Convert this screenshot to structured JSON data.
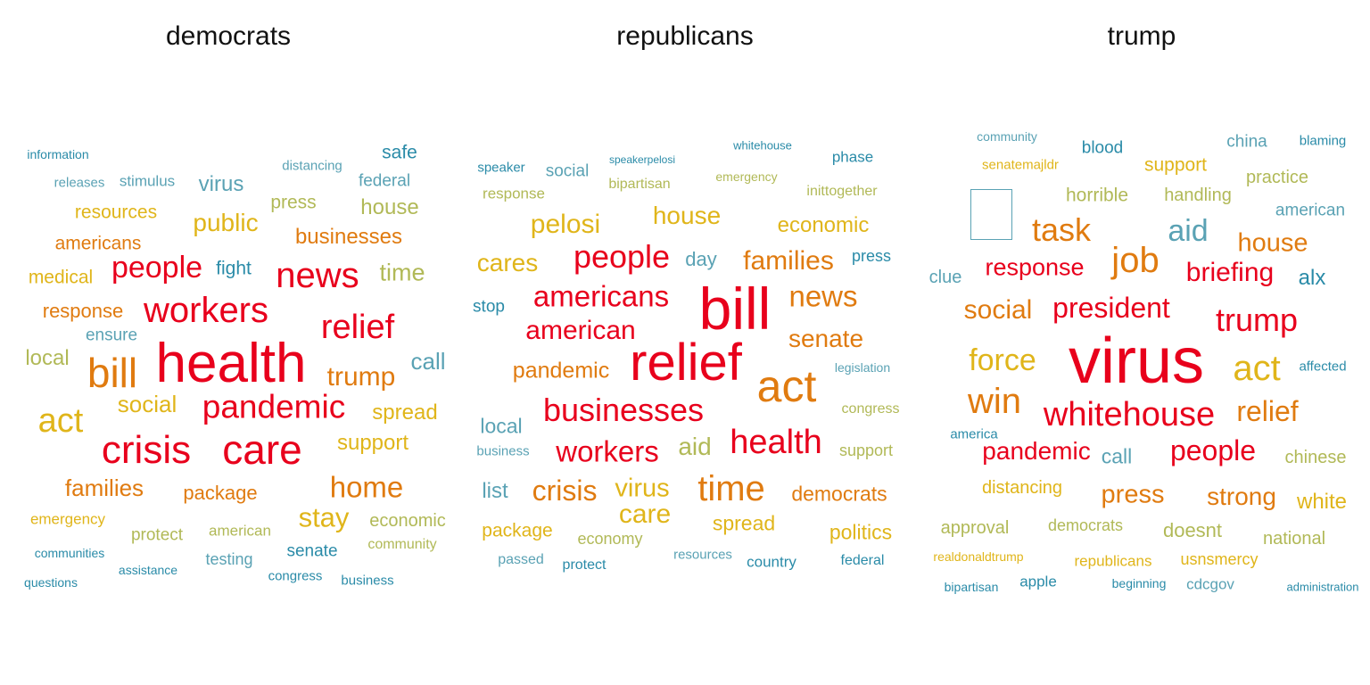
{
  "chart_data": [
    {
      "type": "wordcloud",
      "title": "democrats",
      "words": [
        {
          "text": "health",
          "size": 62,
          "color": "#e8001c"
        },
        {
          "text": "care",
          "size": 46,
          "color": "#e8001c"
        },
        {
          "text": "crisis",
          "size": 44,
          "color": "#e8001c"
        },
        {
          "text": "bill",
          "size": 46,
          "color": "#e07b10"
        },
        {
          "text": "news",
          "size": 40,
          "color": "#e8001c"
        },
        {
          "text": "workers",
          "size": 40,
          "color": "#e8001c"
        },
        {
          "text": "pandemic",
          "size": 37,
          "color": "#e8001c"
        },
        {
          "text": "relief",
          "size": 38,
          "color": "#e8001c"
        },
        {
          "text": "act",
          "size": 38,
          "color": "#e0b51a"
        },
        {
          "text": "people",
          "size": 34,
          "color": "#e8001c"
        },
        {
          "text": "home",
          "size": 33,
          "color": "#e07b10"
        },
        {
          "text": "stay",
          "size": 31,
          "color": "#e0b51a"
        },
        {
          "text": "trump",
          "size": 30,
          "color": "#e07b10"
        },
        {
          "text": "public",
          "size": 28,
          "color": "#e0b51a"
        },
        {
          "text": "families",
          "size": 26,
          "color": "#e07b10"
        },
        {
          "text": "time",
          "size": 27,
          "color": "#b1b957"
        },
        {
          "text": "social",
          "size": 26,
          "color": "#e0b51a"
        },
        {
          "text": "call",
          "size": 26,
          "color": "#5aa2b4"
        },
        {
          "text": "businesses",
          "size": 24,
          "color": "#e07b10"
        },
        {
          "text": "support",
          "size": 24,
          "color": "#e0b51a"
        },
        {
          "text": "spread",
          "size": 24,
          "color": "#e0b51a"
        },
        {
          "text": "virus",
          "size": 24,
          "color": "#5aa2b4"
        },
        {
          "text": "house",
          "size": 24,
          "color": "#b1b957"
        },
        {
          "text": "package",
          "size": 22,
          "color": "#e07b10"
        },
        {
          "text": "local",
          "size": 24,
          "color": "#b1b957"
        },
        {
          "text": "response",
          "size": 22,
          "color": "#e07b10"
        },
        {
          "text": "resources",
          "size": 21,
          "color": "#e0b51a"
        },
        {
          "text": "americans",
          "size": 21,
          "color": "#e07b10"
        },
        {
          "text": "medical",
          "size": 21,
          "color": "#e0b51a"
        },
        {
          "text": "press",
          "size": 21,
          "color": "#b1b957"
        },
        {
          "text": "fight",
          "size": 21,
          "color": "#2a8ba8"
        },
        {
          "text": "safe",
          "size": 21,
          "color": "#2a8ba8"
        },
        {
          "text": "economic",
          "size": 20,
          "color": "#b1b957"
        },
        {
          "text": "protect",
          "size": 19,
          "color": "#b1b957"
        },
        {
          "text": "emergency",
          "size": 17,
          "color": "#e0b51a"
        },
        {
          "text": "ensure",
          "size": 19,
          "color": "#5aa2b4"
        },
        {
          "text": "federal",
          "size": 19,
          "color": "#5aa2b4"
        },
        {
          "text": "senate",
          "size": 19,
          "color": "#2a8ba8"
        },
        {
          "text": "american",
          "size": 17,
          "color": "#b1b957"
        },
        {
          "text": "testing",
          "size": 18,
          "color": "#5aa2b4"
        },
        {
          "text": "stimulus",
          "size": 17,
          "color": "#5aa2b4"
        },
        {
          "text": "community",
          "size": 16,
          "color": "#b1b957"
        },
        {
          "text": "releases",
          "size": 15,
          "color": "#5aa2b4"
        },
        {
          "text": "distancing",
          "size": 15,
          "color": "#5aa2b4"
        },
        {
          "text": "information",
          "size": 14,
          "color": "#2a8ba8"
        },
        {
          "text": "communities",
          "size": 14,
          "color": "#2a8ba8"
        },
        {
          "text": "assistance",
          "size": 14,
          "color": "#2a8ba8"
        },
        {
          "text": "congress",
          "size": 15,
          "color": "#2a8ba8"
        },
        {
          "text": "business",
          "size": 15,
          "color": "#2a8ba8"
        },
        {
          "text": "questions",
          "size": 14,
          "color": "#2a8ba8"
        }
      ]
    },
    {
      "type": "wordcloud",
      "title": "republicans",
      "words": [
        {
          "text": "bill",
          "size": 66,
          "color": "#e8001c"
        },
        {
          "text": "relief",
          "size": 58,
          "color": "#e8001c"
        },
        {
          "text": "act",
          "size": 50,
          "color": "#e07b10"
        },
        {
          "text": "health",
          "size": 38,
          "color": "#e8001c"
        },
        {
          "text": "time",
          "size": 40,
          "color": "#e07b10"
        },
        {
          "text": "businesses",
          "size": 36,
          "color": "#e8001c"
        },
        {
          "text": "people",
          "size": 36,
          "color": "#e8001c"
        },
        {
          "text": "americans",
          "size": 33,
          "color": "#e8001c"
        },
        {
          "text": "news",
          "size": 33,
          "color": "#e07b10"
        },
        {
          "text": "workers",
          "size": 33,
          "color": "#e8001c"
        },
        {
          "text": "crisis",
          "size": 32,
          "color": "#e07b10"
        },
        {
          "text": "american",
          "size": 30,
          "color": "#e8001c"
        },
        {
          "text": "families",
          "size": 30,
          "color": "#e07b10"
        },
        {
          "text": "care",
          "size": 30,
          "color": "#e0b51a"
        },
        {
          "text": "pelosi",
          "size": 30,
          "color": "#e0b51a"
        },
        {
          "text": "virus",
          "size": 29,
          "color": "#e0b51a"
        },
        {
          "text": "cares",
          "size": 28,
          "color": "#e0b51a"
        },
        {
          "text": "house",
          "size": 28,
          "color": "#e0b51a"
        },
        {
          "text": "senate",
          "size": 28,
          "color": "#e07b10"
        },
        {
          "text": "aid",
          "size": 28,
          "color": "#b1b957"
        },
        {
          "text": "pandemic",
          "size": 25,
          "color": "#e07b10"
        },
        {
          "text": "economic",
          "size": 24,
          "color": "#e0b51a"
        },
        {
          "text": "democrats",
          "size": 23,
          "color": "#e07b10"
        },
        {
          "text": "spread",
          "size": 23,
          "color": "#e0b51a"
        },
        {
          "text": "politics",
          "size": 23,
          "color": "#e0b51a"
        },
        {
          "text": "list",
          "size": 24,
          "color": "#5aa2b4"
        },
        {
          "text": "local",
          "size": 23,
          "color": "#5aa2b4"
        },
        {
          "text": "day",
          "size": 22,
          "color": "#5aa2b4"
        },
        {
          "text": "package",
          "size": 21,
          "color": "#e0b51a"
        },
        {
          "text": "social",
          "size": 19,
          "color": "#5aa2b4"
        },
        {
          "text": "stop",
          "size": 19,
          "color": "#2a8ba8"
        },
        {
          "text": "economy",
          "size": 18,
          "color": "#b1b957"
        },
        {
          "text": "support",
          "size": 18,
          "color": "#b1b957"
        },
        {
          "text": "press",
          "size": 18,
          "color": "#2a8ba8"
        },
        {
          "text": "phase",
          "size": 17,
          "color": "#2a8ba8"
        },
        {
          "text": "response",
          "size": 17,
          "color": "#b1b957"
        },
        {
          "text": "bipartisan",
          "size": 16,
          "color": "#b1b957"
        },
        {
          "text": "inittogether",
          "size": 16,
          "color": "#b1b957"
        },
        {
          "text": "congress",
          "size": 16,
          "color": "#b1b957"
        },
        {
          "text": "passed",
          "size": 16,
          "color": "#5aa2b4"
        },
        {
          "text": "protect",
          "size": 16,
          "color": "#2a8ba8"
        },
        {
          "text": "country",
          "size": 17,
          "color": "#2a8ba8"
        },
        {
          "text": "federal",
          "size": 16,
          "color": "#2a8ba8"
        },
        {
          "text": "resources",
          "size": 15,
          "color": "#5aa2b4"
        },
        {
          "text": "speaker",
          "size": 15,
          "color": "#2a8ba8"
        },
        {
          "text": "legislation",
          "size": 14,
          "color": "#5aa2b4"
        },
        {
          "text": "business",
          "size": 15,
          "color": "#5aa2b4"
        },
        {
          "text": "emergency",
          "size": 14,
          "color": "#b1b957"
        },
        {
          "text": "whitehouse",
          "size": 13,
          "color": "#2a8ba8"
        },
        {
          "text": "speakerpelosi",
          "size": 12,
          "color": "#2a8ba8"
        }
      ]
    },
    {
      "type": "wordcloud",
      "title": "trump",
      "words": [
        {
          "text": "virus",
          "size": 72,
          "color": "#e8001c"
        },
        {
          "text": "whitehouse",
          "size": 38,
          "color": "#e8001c"
        },
        {
          "text": "job",
          "size": 40,
          "color": "#e07b10"
        },
        {
          "text": "act",
          "size": 40,
          "color": "#e0b51a"
        },
        {
          "text": "win",
          "size": 40,
          "color": "#e07b10"
        },
        {
          "text": "trump",
          "size": 36,
          "color": "#e8001c"
        },
        {
          "text": "force",
          "size": 34,
          "color": "#e0b51a"
        },
        {
          "text": "task",
          "size": 36,
          "color": "#e07b10"
        },
        {
          "text": "president",
          "size": 32,
          "color": "#e8001c"
        },
        {
          "text": "people",
          "size": 32,
          "color": "#e8001c"
        },
        {
          "text": "relief",
          "size": 32,
          "color": "#e07b10"
        },
        {
          "text": "aid",
          "size": 34,
          "color": "#5aa2b4"
        },
        {
          "text": "social",
          "size": 30,
          "color": "#e07b10"
        },
        {
          "text": "briefing",
          "size": 30,
          "color": "#e8001c"
        },
        {
          "text": "house",
          "size": 29,
          "color": "#e07b10"
        },
        {
          "text": "pandemic",
          "size": 28,
          "color": "#e8001c"
        },
        {
          "text": "response",
          "size": 27,
          "color": "#e8001c"
        },
        {
          "text": "press",
          "size": 29,
          "color": "#e07b10"
        },
        {
          "text": "strong",
          "size": 28,
          "color": "#e07b10"
        },
        {
          "text": "white",
          "size": 24,
          "color": "#e0b51a"
        },
        {
          "text": "alx",
          "size": 24,
          "color": "#2a8ba8"
        },
        {
          "text": "call",
          "size": 23,
          "color": "#5aa2b4"
        },
        {
          "text": "doesnt",
          "size": 22,
          "color": "#b1b957"
        },
        {
          "text": "support",
          "size": 21,
          "color": "#e0b51a"
        },
        {
          "text": "horrible",
          "size": 21,
          "color": "#b1b957"
        },
        {
          "text": "handling",
          "size": 20,
          "color": "#b1b957"
        },
        {
          "text": "practice",
          "size": 20,
          "color": "#b1b957"
        },
        {
          "text": "distancing",
          "size": 20,
          "color": "#e0b51a"
        },
        {
          "text": "chinese",
          "size": 20,
          "color": "#b1b957"
        },
        {
          "text": "national",
          "size": 20,
          "color": "#b1b957"
        },
        {
          "text": "approval",
          "size": 20,
          "color": "#b1b957"
        },
        {
          "text": "clue",
          "size": 20,
          "color": "#5aa2b4"
        },
        {
          "text": "american",
          "size": 19,
          "color": "#5aa2b4"
        },
        {
          "text": "china",
          "size": 19,
          "color": "#5aa2b4"
        },
        {
          "text": "blood",
          "size": 19,
          "color": "#2a8ba8"
        },
        {
          "text": "democrats",
          "size": 18,
          "color": "#b1b957"
        },
        {
          "text": "usnsmercy",
          "size": 18,
          "color": "#e0b51a"
        },
        {
          "text": "republicans",
          "size": 17,
          "color": "#e0b51a"
        },
        {
          "text": "apple",
          "size": 17,
          "color": "#2a8ba8"
        },
        {
          "text": "cdcgov",
          "size": 17,
          "color": "#5aa2b4"
        },
        {
          "text": "senatemajldr",
          "size": 15,
          "color": "#e0b51a"
        },
        {
          "text": "realdonaldtrump",
          "size": 14,
          "color": "#e0b51a"
        },
        {
          "text": "blaming",
          "size": 15,
          "color": "#2a8ba8"
        },
        {
          "text": "affected",
          "size": 15,
          "color": "#2a8ba8"
        },
        {
          "text": "community",
          "size": 14,
          "color": "#5aa2b4"
        },
        {
          "text": "america",
          "size": 15,
          "color": "#2a8ba8"
        },
        {
          "text": "bipartisan",
          "size": 14,
          "color": "#2a8ba8"
        },
        {
          "text": "beginning",
          "size": 14,
          "color": "#2a8ba8"
        },
        {
          "text": "administration",
          "size": 13,
          "color": "#2a8ba8"
        }
      ]
    }
  ]
}
